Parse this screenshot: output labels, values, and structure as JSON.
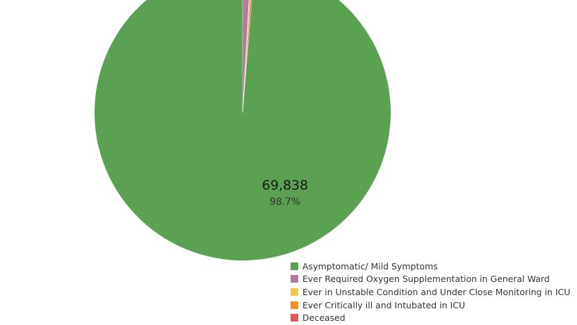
{
  "chart_data": {
    "type": "pie",
    "title": "",
    "slices": [
      {
        "label": "Asymptomatic/ Mild Symptoms",
        "value": 69838,
        "value_label": "69,838",
        "percent_label": "98.7%",
        "percent": 98.7,
        "color": "#5aa151"
      },
      {
        "label": "Ever Required Oxygen Supplementation in General Ward",
        "percent": 0.9,
        "color": "#b07aa1"
      },
      {
        "label": "Ever in Unstable Condition and Under Close Monitoring in ICU",
        "percent": 0.1,
        "color": "#edc948"
      },
      {
        "label": "Ever Critically ill and Intubated in ICU",
        "percent": 0.15,
        "color": "#f28e2b"
      },
      {
        "label": "Deceased",
        "percent": 0.15,
        "color": "#e15759"
      }
    ],
    "legend_position": "bottom-right"
  }
}
